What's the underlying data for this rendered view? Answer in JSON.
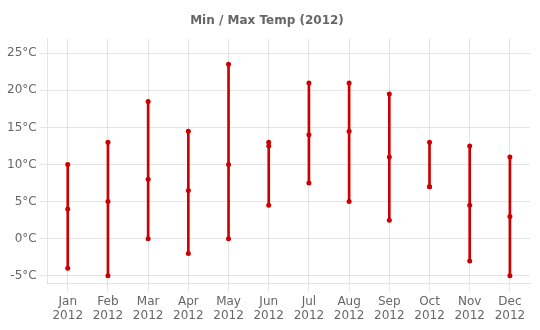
{
  "chart_data": {
    "type": "range",
    "title": "Min / Max Temp (2012)",
    "categories": [
      "Jan\n2012",
      "Feb\n2012",
      "Mar\n2012",
      "Apr\n2012",
      "May\n2012",
      "Jun\n2012",
      "Jul\n2012",
      "Aug\n2012",
      "Sep\n2012",
      "Oct\n2012",
      "Nov\n2012",
      "Dec\n2012"
    ],
    "min_values": [
      -4,
      -5,
      0,
      -2,
      0,
      4.5,
      7.5,
      5,
      2.5,
      7,
      -3,
      -5
    ],
    "max_values": [
      10,
      13,
      18.5,
      14.5,
      23.5,
      13,
      21,
      21,
      19.5,
      13,
      12.5,
      11
    ],
    "mid_values": [
      4,
      5,
      8,
      6.5,
      10,
      12.5,
      14,
      14.5,
      11,
      7,
      4.5,
      3
    ],
    "color": "#cc0000",
    "ylim": [
      -6,
      27
    ],
    "yticks": [
      {
        "value": -5,
        "label": "-5°C"
      },
      {
        "value": 0,
        "label": "0°C"
      },
      {
        "value": 5,
        "label": "5°C"
      },
      {
        "value": 10,
        "label": "10°C"
      },
      {
        "value": 15,
        "label": "15°C"
      },
      {
        "value": 20,
        "label": "20°C"
      },
      {
        "value": 25,
        "label": "25°C"
      }
    ],
    "grid": true
  }
}
